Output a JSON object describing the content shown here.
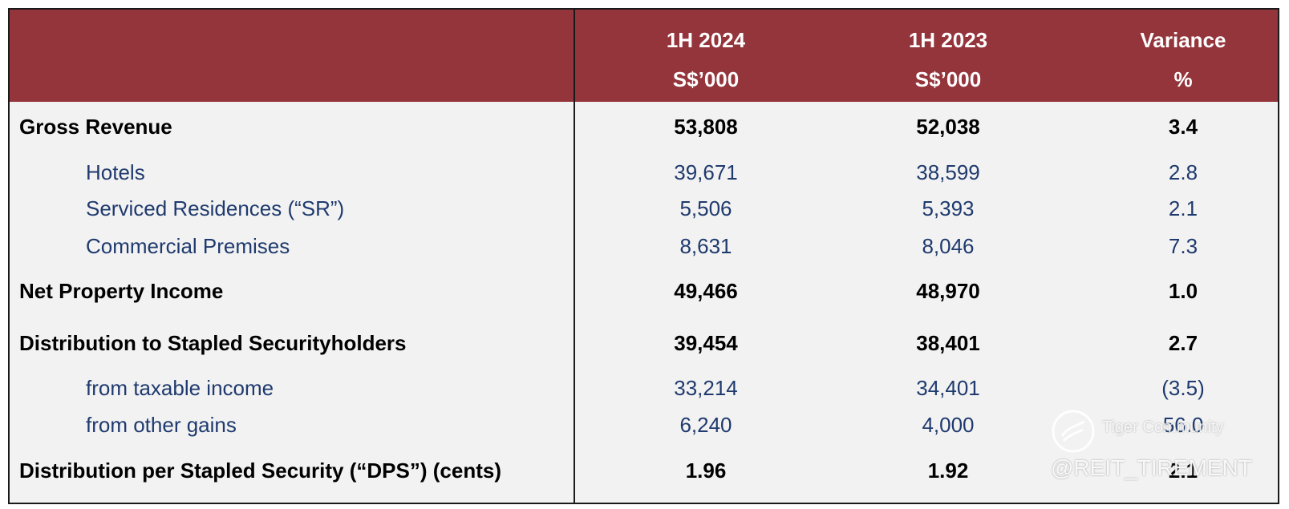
{
  "header": {
    "col1": {
      "line1": "1H 2024",
      "line2": "S$’000"
    },
    "col2": {
      "line1": "1H 2023",
      "line2": "S$’000"
    },
    "col3": {
      "line1": "Variance",
      "line2": "%"
    }
  },
  "rows": [
    {
      "label": "Gross Revenue",
      "v1": "53,808",
      "v2": "52,038",
      "v3": "3.4"
    },
    {
      "label": "Hotels",
      "v1": "39,671",
      "v2": "38,599",
      "v3": "2.8"
    },
    {
      "label": "Serviced Residences (“SR”)",
      "v1": "5,506",
      "v2": "5,393",
      "v3": "2.1"
    },
    {
      "label": "Commercial Premises",
      "v1": "8,631",
      "v2": "8,046",
      "v3": "7.3"
    },
    {
      "label": "Net Property Income",
      "v1": "49,466",
      "v2": "48,970",
      "v3": "1.0"
    },
    {
      "label": "Distribution to Stapled Securityholders",
      "v1": "39,454",
      "v2": "38,401",
      "v3": "2.7"
    },
    {
      "label": "from taxable income",
      "v1": "33,214",
      "v2": "34,401",
      "v3": "(3.5)"
    },
    {
      "label": "from other gains",
      "v1": "6,240",
      "v2": "4,000",
      "v3": "56.0"
    },
    {
      "label": "Distribution per Stapled Security (“DPS”) (cents)",
      "v1": "1.96",
      "v2": "1.92",
      "v3": "2.1"
    }
  ],
  "watermark": {
    "name": "Tiger Community",
    "handle": "@REIT_TIREMENT",
    "logo_icon": "tiger-community-logo-icon"
  },
  "colors": {
    "header_bg": "#94343b",
    "body_bg": "#f2f2f2",
    "sub_text": "#1f3a6e"
  }
}
